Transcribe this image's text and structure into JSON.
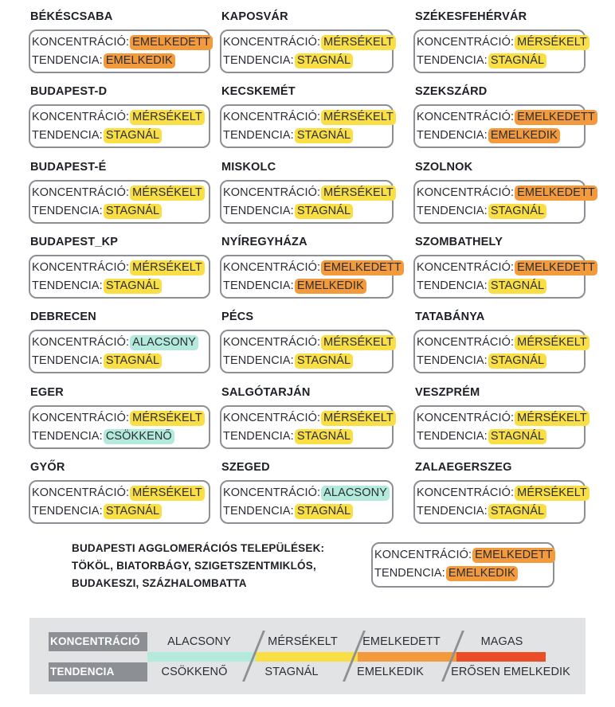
{
  "labels": {
    "concentration": "KONCENTRÁCIÓ:",
    "trend": "TENDENCIA:"
  },
  "cities": [
    {
      "name": "BÉKÉSCSABA",
      "concentration": "EMELKEDETT",
      "c_level": "high",
      "trend": "EMELKEDIK",
      "t_level": "high"
    },
    {
      "name": "KAPOSVÁR",
      "concentration": "MÉRSÉKELT",
      "c_level": "mid",
      "trend": "STAGNÁL",
      "t_level": "mid"
    },
    {
      "name": "SZÉKESFEHÉRVÁR",
      "concentration": "MÉRSÉKELT",
      "c_level": "mid",
      "trend": "STAGNÁL",
      "t_level": "mid"
    },
    {
      "name": "BUDAPEST-D",
      "concentration": "MÉRSÉKELT",
      "c_level": "mid",
      "trend": "STAGNÁL",
      "t_level": "mid"
    },
    {
      "name": "KECSKEMÉT",
      "concentration": "MÉRSÉKELT",
      "c_level": "mid",
      "trend": "STAGNÁL",
      "t_level": "mid"
    },
    {
      "name": "SZEKSZÁRD",
      "concentration": "EMELKEDETT",
      "c_level": "high",
      "trend": "EMELKEDIK",
      "t_level": "high"
    },
    {
      "name": "BUDAPEST-É",
      "concentration": "MÉRSÉKELT",
      "c_level": "mid",
      "trend": "STAGNÁL",
      "t_level": "mid"
    },
    {
      "name": "MISKOLC",
      "concentration": "MÉRSÉKELT",
      "c_level": "mid",
      "trend": "STAGNÁL",
      "t_level": "mid"
    },
    {
      "name": "SZOLNOK",
      "concentration": "EMELKEDETT",
      "c_level": "high",
      "trend": "STAGNÁL",
      "t_level": "mid"
    },
    {
      "name": "BUDAPEST_KP",
      "concentration": "MÉRSÉKELT",
      "c_level": "mid",
      "trend": "STAGNÁL",
      "t_level": "mid"
    },
    {
      "name": "NYÍREGYHÁZA",
      "concentration": "EMELKEDETT",
      "c_level": "high",
      "trend": "EMELKEDIK",
      "t_level": "high"
    },
    {
      "name": "SZOMBATHELY",
      "concentration": "EMELKEDETT",
      "c_level": "high",
      "trend": "STAGNÁL",
      "t_level": "mid"
    },
    {
      "name": "DEBRECEN",
      "concentration": "ALACSONY",
      "c_level": "low",
      "trend": "STAGNÁL",
      "t_level": "mid"
    },
    {
      "name": "PÉCS",
      "concentration": "MÉRSÉKELT",
      "c_level": "mid",
      "trend": "STAGNÁL",
      "t_level": "mid"
    },
    {
      "name": "TATABÁNYA",
      "concentration": "MÉRSÉKELT",
      "c_level": "mid",
      "trend": "STAGNÁL",
      "t_level": "mid"
    },
    {
      "name": "EGER",
      "concentration": "MÉRSÉKELT",
      "c_level": "mid",
      "trend": "CSÖKKENŐ",
      "t_level": "low"
    },
    {
      "name": "SALGÓTARJÁN",
      "concentration": "MÉRSÉKELT",
      "c_level": "mid",
      "trend": "STAGNÁL",
      "t_level": "mid"
    },
    {
      "name": "VESZPRÉM",
      "concentration": "MÉRSÉKELT",
      "c_level": "mid",
      "trend": "STAGNÁL",
      "t_level": "mid"
    },
    {
      "name": "GYŐR",
      "concentration": "MÉRSÉKELT",
      "c_level": "mid",
      "trend": "STAGNÁL",
      "t_level": "mid"
    },
    {
      "name": "SZEGED",
      "concentration": "ALACSONY",
      "c_level": "low",
      "trend": "STAGNÁL",
      "t_level": "mid"
    },
    {
      "name": "ZALAEGERSZEG",
      "concentration": "MÉRSÉKELT",
      "c_level": "mid",
      "trend": "STAGNÁL",
      "t_level": "mid"
    }
  ],
  "agglomeration": {
    "title_lines": [
      "BUDAPESTI AGGLOMERÁCIÓS TELEPÜLÉSEK:",
      "TÖKÖL, BIATORBÁGY, SZIGETSZENTMIKLÓS,",
      "BUDAKESZI, SZÁZHALOMBATTA"
    ],
    "concentration": "EMELKEDETT",
    "c_level": "high",
    "trend": "EMELKEDIK",
    "t_level": "high"
  },
  "legend": {
    "concentration_key": "KONCENTRÁCIÓ",
    "trend_key": "TENDENCIA",
    "levels": [
      {
        "concentration": "ALACSONY",
        "trend": "CSÖKKENŐ",
        "color": "#b3eadb"
      },
      {
        "concentration": "MÉRSÉKELT",
        "trend": "STAGNÁL",
        "color": "#f9df45"
      },
      {
        "concentration": "EMELKEDETT",
        "trend": "EMELKEDIK",
        "color": "#f39a3d"
      },
      {
        "concentration": "MAGAS",
        "trend": "ERŐSEN EMELKEDIK",
        "color": "#ea4e28"
      }
    ]
  }
}
